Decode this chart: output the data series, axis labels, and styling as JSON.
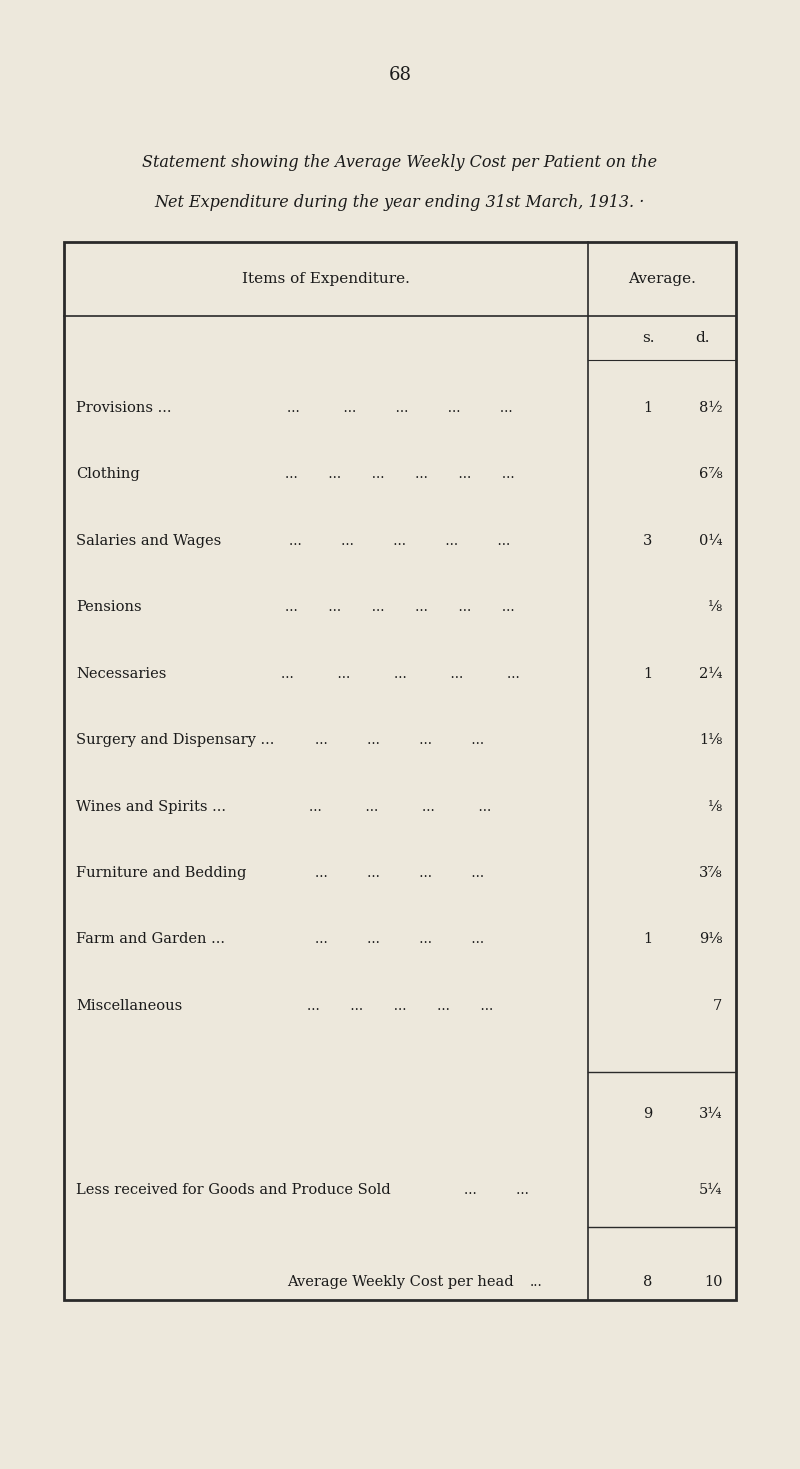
{
  "page_number": "68",
  "background_color": "#EDE8DC",
  "title_line1": "Statement showing the Average Weekly Cost per Patient on the",
  "title_line2": "Net Expenditure during the year ending 31st March, 1913. ·",
  "table_header_left": "Items of Expenditure.",
  "table_header_right": "Average.",
  "col_s": "s.",
  "col_d": "d.",
  "rows": [
    {
      "label": "Provisions ...",
      "dots": "...          ...         ...         ...         ...",
      "s": "1",
      "d": "8½"
    },
    {
      "label": "Clothing",
      "dots": "...       ...       ...       ...       ...       ...",
      "s": "",
      "d": "6⅞"
    },
    {
      "label": "Salaries and Wages",
      "dots": "...         ...         ...         ...         ...",
      "s": "3",
      "d": "0¼"
    },
    {
      "label": "Pensions",
      "dots": "...       ...       ...       ...       ...       ...",
      "s": "",
      "d": "⅛"
    },
    {
      "label": "Necessaries",
      "dots": "...          ...          ...          ...          ...",
      "s": "1",
      "d": "2¼"
    },
    {
      "label": "Surgery and Dispensary ...",
      "dots": "...         ...         ...         ...",
      "s": "",
      "d": "1⅛"
    },
    {
      "label": "Wines and Spirits ...",
      "dots": "...          ...          ...          ...",
      "s": "",
      "d": "⅛"
    },
    {
      "label": "Furniture and Bedding",
      "dots": "...         ...         ...         ...",
      "s": "",
      "d": "3⅞"
    },
    {
      "label": "Farm and Garden ...",
      "dots": "...         ...         ...         ...",
      "s": "1",
      "d": "9⅛"
    },
    {
      "label": "Miscellaneous",
      "dots": "...       ...       ...       ...       ...",
      "s": "",
      "d": "7"
    }
  ],
  "subtotal_s": "9",
  "subtotal_d": "3¼",
  "less_label": "Less received for Goods and Produce Sold",
  "less_dots": "...         ...",
  "less_s": "",
  "less_d": "5¼",
  "total_label": "Average Weekly Cost per head",
  "total_dots": "...",
  "total_s": "8",
  "total_d": "10",
  "text_color": "#1a1a1a",
  "line_color": "#2a2a2a"
}
